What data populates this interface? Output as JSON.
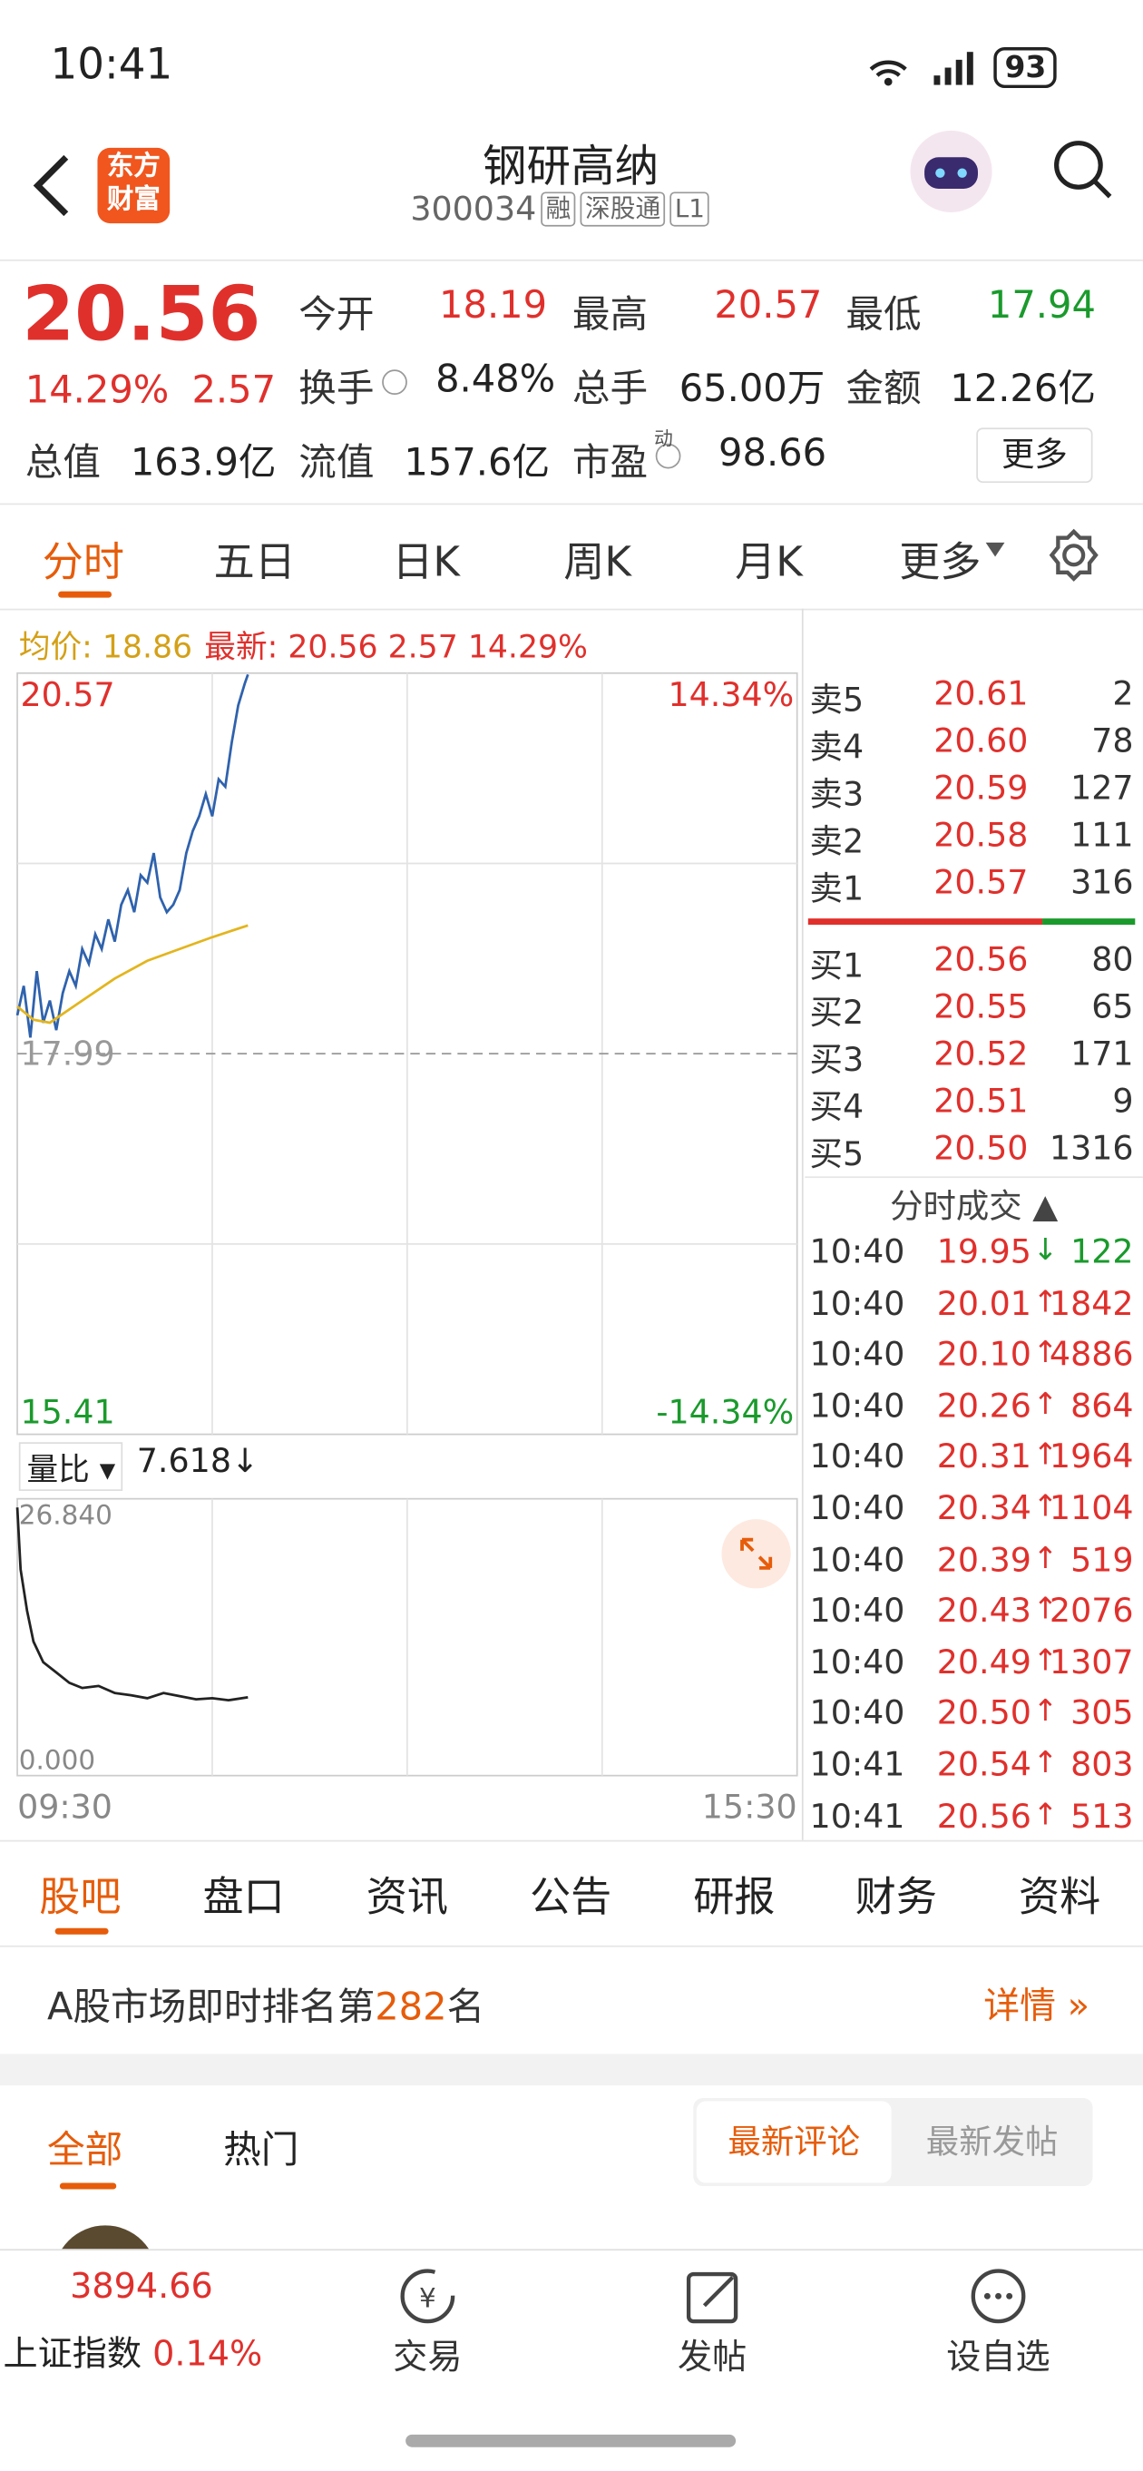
{
  "status_bar": {
    "time": "10:41",
    "battery": "93"
  },
  "header": {
    "logo": [
      "东方",
      "财富"
    ],
    "title": "钢研高纳",
    "code": "300034",
    "tags": [
      "融",
      "深股通",
      "L1"
    ]
  },
  "quote": {
    "price": "20.56",
    "change_pct": "14.29%",
    "change": "2.57",
    "rows": [
      [
        {
          "label": "今开",
          "value": "18.19"
        },
        {
          "label": "最高",
          "value": "20.57"
        },
        {
          "label": "最低",
          "value": "17.94"
        }
      ],
      [
        {
          "label": "换手",
          "value": "8.48%"
        },
        {
          "label": "总手",
          "value": "65.00万"
        },
        {
          "label": "金额",
          "value": "12.26亿"
        }
      ],
      [
        {
          "label": "总值",
          "value": "163.9亿"
        },
        {
          "label": "流值",
          "value": "157.6亿"
        },
        {
          "label": "市盈",
          "value": "98.66"
        }
      ]
    ],
    "pe_note": "动",
    "more": "更多"
  },
  "chart_tabs": [
    "分时",
    "五日",
    "日K",
    "周K",
    "月K",
    "更多"
  ],
  "legend": {
    "avg_label": "均价:",
    "avg_value": "18.86",
    "latest_label": "最新:",
    "latest_price": "20.56",
    "latest_change": "2.57",
    "latest_pct": "14.29%"
  },
  "intraday_chart": {
    "type": "line",
    "xlim": [
      0,
      240
    ],
    "xticks": [
      {
        "value": 0,
        "label": "09:30"
      },
      {
        "value": 240,
        "label": "15:30"
      }
    ],
    "ylim": [
      15.41,
      20.57
    ],
    "yticks": [
      20.57,
      17.99,
      15.41
    ],
    "prev_close": 17.99,
    "y2lim": [
      -14.34,
      14.34
    ],
    "y2ticks": [
      {
        "value": 14.34,
        "label": "14.34%"
      },
      {
        "value": -14.34,
        "label": "-14.34%"
      }
    ],
    "series": [
      {
        "name": "最新",
        "color": "#2f62ad",
        "x": [
          0,
          2,
          4,
          6,
          8,
          10,
          12,
          14,
          16,
          18,
          20,
          22,
          24,
          26,
          28,
          30,
          32,
          34,
          36,
          38,
          40,
          42,
          44,
          46,
          48,
          50,
          52,
          54,
          56,
          58,
          60,
          62,
          64,
          66,
          68,
          70,
          71
        ],
        "values": [
          18.25,
          18.45,
          18.1,
          18.55,
          18.2,
          18.35,
          18.15,
          18.4,
          18.55,
          18.45,
          18.7,
          18.6,
          18.8,
          18.7,
          18.9,
          18.75,
          19.0,
          19.1,
          18.95,
          19.2,
          19.15,
          19.35,
          19.05,
          18.95,
          19.0,
          19.1,
          19.35,
          19.5,
          19.6,
          19.75,
          19.6,
          19.85,
          19.8,
          20.1,
          20.35,
          20.5,
          20.56
        ]
      },
      {
        "name": "均价",
        "color": "#e3b51e",
        "x": [
          0,
          5,
          10,
          20,
          30,
          40,
          50,
          60,
          71
        ],
        "values": [
          18.31,
          18.22,
          18.2,
          18.35,
          18.5,
          18.62,
          18.7,
          18.78,
          18.86
        ]
      }
    ]
  },
  "volume_ratio": {
    "type": "line",
    "label": "量比",
    "value": "7.618",
    "arrow": "↓",
    "xlim": [
      0,
      240
    ],
    "ylim": [
      0,
      26.84
    ],
    "yticks": [
      {
        "value": 26.84,
        "label": "26.840"
      },
      {
        "value": 0,
        "label": "0.000"
      }
    ],
    "series": [
      {
        "color": "#222222",
        "x": [
          0,
          1,
          3,
          5,
          8,
          12,
          16,
          20,
          25,
          30,
          35,
          40,
          45,
          50,
          55,
          60,
          65,
          71
        ],
        "values": [
          26.0,
          20,
          16,
          13,
          11,
          10,
          9,
          8.5,
          8.7,
          8,
          7.8,
          7.5,
          8,
          7.7,
          7.4,
          7.5,
          7.3,
          7.6
        ]
      }
    ]
  },
  "order_book": {
    "asks": [
      [
        "卖5",
        "20.61",
        "2"
      ],
      [
        "卖4",
        "20.60",
        "78"
      ],
      [
        "卖3",
        "20.59",
        "127"
      ],
      [
        "卖2",
        "20.58",
        "111"
      ],
      [
        "卖1",
        "20.57",
        "316"
      ]
    ],
    "bids": [
      [
        "买1",
        "20.56",
        "80"
      ],
      [
        "买2",
        "20.55",
        "65"
      ],
      [
        "买3",
        "20.52",
        "171"
      ],
      [
        "买4",
        "20.51",
        "9"
      ],
      [
        "买5",
        "20.50",
        "1316"
      ]
    ]
  },
  "trades": {
    "title": "分时成交",
    "rows": [
      {
        "time": "10:40",
        "price": "19.95",
        "dir": "↓",
        "volume": "122",
        "color": "#1a9a2c"
      },
      {
        "time": "10:40",
        "price": "20.01",
        "dir": "↑",
        "volume": "1842",
        "color": "#e0302c"
      },
      {
        "time": "10:40",
        "price": "20.10",
        "dir": "↑",
        "volume": "4886",
        "color": "#e0302c"
      },
      {
        "time": "10:40",
        "price": "20.26",
        "dir": "↑",
        "volume": "864",
        "color": "#e0302c"
      },
      {
        "time": "10:40",
        "price": "20.31",
        "dir": "↑",
        "volume": "1964",
        "color": "#e0302c"
      },
      {
        "time": "10:40",
        "price": "20.34",
        "dir": "↑",
        "volume": "1104",
        "color": "#e0302c"
      },
      {
        "time": "10:40",
        "price": "20.39",
        "dir": "↑",
        "volume": "519",
        "color": "#e0302c"
      },
      {
        "time": "10:40",
        "price": "20.43",
        "dir": "↑",
        "volume": "2076",
        "color": "#e0302c"
      },
      {
        "time": "10:40",
        "price": "20.49",
        "dir": "↑",
        "volume": "1307",
        "color": "#e0302c"
      },
      {
        "time": "10:40",
        "price": "20.50",
        "dir": "↑",
        "volume": "305",
        "color": "#e0302c"
      },
      {
        "time": "10:41",
        "price": "20.54",
        "dir": "↑",
        "volume": "803",
        "color": "#e0302c"
      },
      {
        "time": "10:41",
        "price": "20.56",
        "dir": "↑",
        "volume": "513",
        "color": "#e0302c"
      }
    ]
  },
  "info_tabs": [
    "股吧",
    "盘口",
    "资讯",
    "公告",
    "研报",
    "财务",
    "资料"
  ],
  "ranking": {
    "prefix": "A股市场即时排名第",
    "rank": "282",
    "suffix": "名",
    "detail": "详情 »"
  },
  "comment_tabs": [
    "全部",
    "热门"
  ],
  "sort_tabs": [
    "最新评论",
    "最新发帖"
  ],
  "footer": {
    "index_value": "3894.66",
    "index_name": "上证指数",
    "index_change": "0.14%",
    "buttons": [
      "交易",
      "发帖",
      "设自选"
    ]
  }
}
